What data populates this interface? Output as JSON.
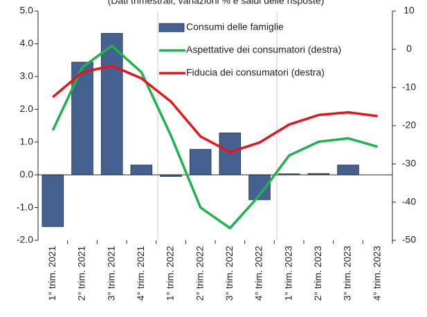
{
  "chart_data": {
    "type": "combo",
    "title": "(Dati trimestrali; variazioni % e saldi delle risposte)",
    "categories": [
      "1° trim. 2021",
      "2° trim. 2021",
      "3° trim. 2021",
      "4° trim. 2021",
      "1° trim. 2022",
      "2° trim. 2022",
      "3° trim. 2022",
      "4° trim. 2022",
      "1° trim. 2023",
      "2° trim. 2023",
      "3° trim. 2023",
      "4° trim. 2023"
    ],
    "series": [
      {
        "name": "Consumi delle famiglie",
        "type": "bar",
        "color": "#44618f",
        "axis": "y",
        "values": [
          -1.58,
          3.44,
          4.32,
          0.3,
          -0.05,
          0.78,
          1.28,
          -0.76,
          0.03,
          0.04,
          0.3,
          null
        ]
      },
      {
        "name": "Aspettative dei consumatori (destra)",
        "type": "line",
        "color": "#1db34e",
        "axis": "y2",
        "values": [
          -21.2,
          -4.7,
          0.9,
          -6,
          -22.6,
          -41.4,
          -46.8,
          -38.2,
          -27.8,
          -24.2,
          -23.3,
          -25.5
        ]
      },
      {
        "name": "Fiducia dei consumatori (destra)",
        "type": "line",
        "color": "#e8141b",
        "axis": "y2",
        "values": [
          -12.5,
          -6,
          -4.3,
          -7.6,
          -13.7,
          -22.8,
          -26.9,
          -24.4,
          -19.7,
          -17.2,
          -16.5,
          -17.5
        ]
      }
    ],
    "ylim": [
      -2,
      5
    ],
    "yticks": [
      {
        "value": -2,
        "label": "-2.0"
      },
      {
        "value": -1,
        "label": "-1.0"
      },
      {
        "value": 0,
        "label": "0.0"
      },
      {
        "value": 1,
        "label": "1.0"
      },
      {
        "value": 2,
        "label": "2.0"
      },
      {
        "value": 3,
        "label": "3.0"
      },
      {
        "value": 4,
        "label": "4.0"
      },
      {
        "value": 5,
        "label": "5.0"
      }
    ],
    "y2lim": [
      -50,
      10
    ],
    "y2ticks": [
      -50,
      -40,
      -30,
      -20,
      -10,
      0,
      10
    ]
  }
}
